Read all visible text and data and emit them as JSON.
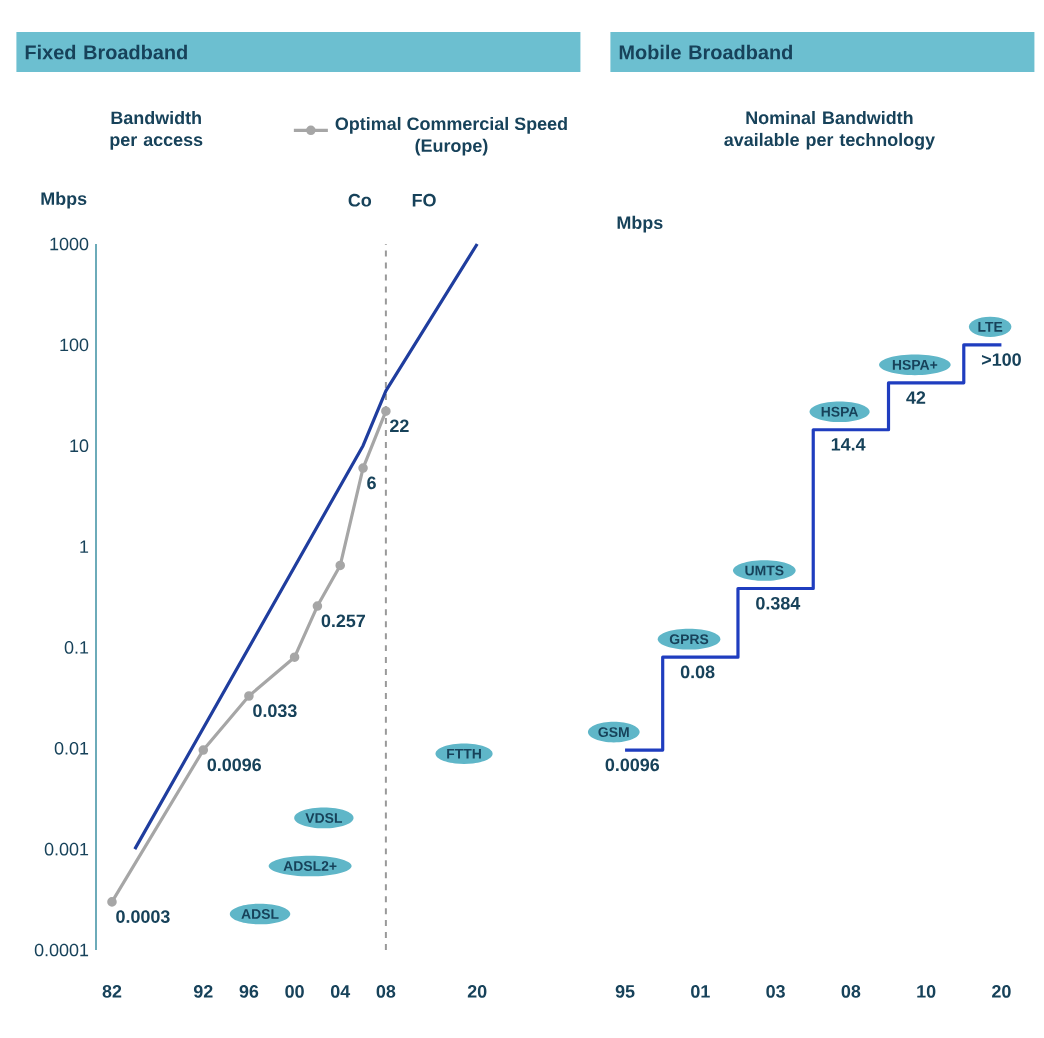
{
  "chart_data": [
    {
      "type": "line",
      "title": "Fixed Broadband",
      "subtitle": "Bandwidth per access",
      "ylabel": "Mbps",
      "categories": [
        "82",
        null,
        null,
        null,
        "92",
        null,
        "96",
        null,
        "00",
        null,
        "04",
        null,
        "08",
        null,
        null,
        null,
        "20"
      ],
      "series": [
        {
          "color": "#1f3d9e",
          "values": [
            null,
            0.001,
            null,
            null,
            null,
            null,
            null,
            null,
            null,
            null,
            null,
            10,
            35,
            null,
            null,
            null,
            1000
          ]
        },
        {
          "name": "Optimal Commercial Speed (Europe)",
          "color": "#a6a6a6",
          "marker": "circle",
          "values": [
            0.0003,
            null,
            null,
            null,
            0.0096,
            null,
            0.033,
            null,
            0.08,
            0.257,
            0.65,
            6,
            22,
            null,
            null,
            null,
            null
          ],
          "value_labels": [
            "0.0003",
            null,
            null,
            null,
            "0.0096",
            null,
            "0.033",
            null,
            null,
            "0.257",
            null,
            "6",
            "22",
            null,
            null,
            null,
            null
          ]
        }
      ],
      "log": "y",
      "ylim": [
        0.0001,
        1000
      ],
      "yticks": [
        0.0001,
        0.001,
        0.01,
        0.1,
        1,
        10,
        100,
        1000
      ],
      "legend": "top right",
      "ref_lines": [
        {
          "axis": "x",
          "value": "08",
          "line_style": "dashed",
          "color": "#999999"
        }
      ],
      "annotations": [
        "Co",
        "FO",
        "FTTH",
        "VDSL",
        "ADSL2+",
        "ADSL"
      ]
    },
    {
      "type": "step",
      "title": "Mobile Broadband",
      "subtitle": "Nominal Bandwidth available per technology",
      "ylabel": "Mbps",
      "categories": [
        "95",
        "01",
        "03",
        "08",
        "10",
        "20"
      ],
      "values": [
        0.0096,
        0.08,
        0.384,
        14.4,
        42,
        100
      ],
      "value_labels": [
        "0.0096",
        "0.08",
        "0.384",
        "14.4",
        "42",
        ">100"
      ],
      "color": "#1f3dbf",
      "log": "y",
      "ylim": [
        0.0001,
        1000
      ],
      "tick_labels": "x",
      "annotations": [
        {
          "text": "GSM",
          "x": "95",
          "y": 0.0096
        },
        {
          "text": "GPRS",
          "x": "01",
          "y": 0.08
        },
        {
          "text": "UMTS",
          "x": "03",
          "y": 0.384
        },
        {
          "text": "HSPA",
          "x": "08",
          "y": 14.4
        },
        {
          "text": "HSPA+",
          "x": "10",
          "y": 42
        },
        {
          "text": "LTE",
          "x": "20",
          "y": 100
        }
      ]
    }
  ]
}
